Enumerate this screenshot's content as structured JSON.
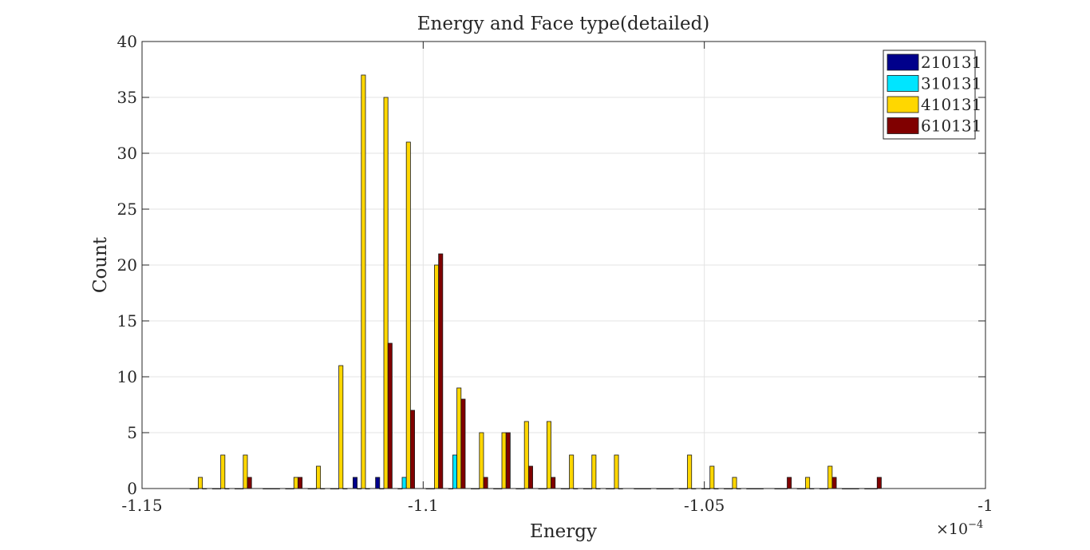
{
  "chart_data": {
    "type": "bar",
    "title": "Energy and Face type(detailed)",
    "xlabel": "Energy",
    "ylabel": "Count",
    "x_exponent_label": "×10",
    "x_exponent_power": "−4",
    "xlim": [
      -1.15,
      -1.0
    ],
    "ylim": [
      0,
      40
    ],
    "xticks": [
      -1.15,
      -1.1,
      -1.05,
      -1.0
    ],
    "xtick_labels": [
      "-1.15",
      "-1.1",
      "-1.05",
      "-1"
    ],
    "yticks": [
      0,
      5,
      10,
      15,
      20,
      25,
      30,
      35,
      40
    ],
    "ytick_labels": [
      "0",
      "5",
      "10",
      "15",
      "20",
      "25",
      "30",
      "35",
      "40"
    ],
    "grid": true,
    "legend_position": "top-right",
    "bin_centers": [
      -1.14,
      -1.136,
      -1.132,
      -1.127,
      -1.123,
      -1.119,
      -1.115,
      -1.111,
      -1.107,
      -1.103,
      -1.098,
      -1.094,
      -1.09,
      -1.086,
      -1.082,
      -1.078,
      -1.074,
      -1.07,
      -1.066,
      -1.061,
      -1.057,
      -1.053,
      -1.049,
      -1.045,
      -1.041,
      -1.036,
      -1.032,
      -1.028,
      -1.024,
      -1.02
    ],
    "series": [
      {
        "name": "210131",
        "color": "#00008b",
        "values": [
          0,
          0,
          0,
          0,
          0,
          0,
          0,
          1,
          1,
          0,
          0,
          0,
          0,
          0,
          0,
          0,
          0,
          0,
          0,
          0,
          0,
          0,
          0,
          0,
          0,
          0,
          0,
          0,
          0,
          0
        ]
      },
      {
        "name": "310131",
        "color": "#00e5ff",
        "values": [
          0,
          0,
          0,
          0,
          0,
          0,
          0,
          0,
          0,
          1,
          0,
          3,
          0,
          0,
          0,
          0,
          0,
          0,
          0,
          0,
          0,
          0,
          0,
          0,
          0,
          0,
          0,
          0,
          0,
          0
        ]
      },
      {
        "name": "410131",
        "color": "#ffd700",
        "values": [
          1,
          3,
          3,
          0,
          1,
          2,
          11,
          37,
          35,
          31,
          20,
          9,
          5,
          5,
          6,
          6,
          3,
          3,
          3,
          0,
          0,
          3,
          2,
          1,
          0,
          0,
          1,
          2,
          0,
          0
        ]
      },
      {
        "name": "610131",
        "color": "#800000",
        "values": [
          0,
          0,
          1,
          0,
          1,
          0,
          0,
          0,
          13,
          7,
          21,
          8,
          1,
          5,
          2,
          1,
          0,
          0,
          0,
          0,
          0,
          0,
          0,
          0,
          0,
          1,
          0,
          1,
          0,
          1
        ]
      }
    ]
  }
}
